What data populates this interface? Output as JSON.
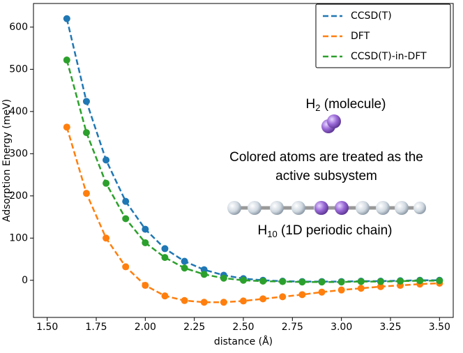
{
  "chart_data": {
    "type": "line",
    "xlabel": "distance (Å)",
    "ylabel": "Adsorption Energy (meV)",
    "x": [
      1.6,
      1.7,
      1.8,
      1.9,
      2.0,
      2.1,
      2.2,
      2.3,
      2.4,
      2.5,
      2.6,
      2.7,
      2.8,
      2.9,
      3.0,
      3.1,
      3.2,
      3.3,
      3.4,
      3.5
    ],
    "series": [
      {
        "name": "CCSD(T)",
        "color": "#1f77b4",
        "values": [
          620,
          424,
          285,
          187,
          121,
          75,
          45,
          25,
          12,
          4,
          0,
          -2,
          -3,
          -3,
          -3,
          -2,
          -2,
          -1,
          0,
          0
        ]
      },
      {
        "name": "DFT",
        "color": "#ff7f0e",
        "values": [
          363,
          206,
          100,
          32,
          -12,
          -37,
          -48,
          -52,
          -52,
          -49,
          -44,
          -39,
          -34,
          -28,
          -23,
          -19,
          -15,
          -12,
          -9,
          -7
        ]
      },
      {
        "name": "CCSD(T)-in-DFT",
        "color": "#2ca02c",
        "values": [
          522,
          350,
          230,
          146,
          89,
          54,
          29,
          14,
          5,
          0,
          -2,
          -3,
          -4,
          -4,
          -4,
          -3,
          -3,
          -2,
          -1,
          -1
        ]
      }
    ],
    "xlim": [
      1.43,
      3.57
    ],
    "ylim": [
      -88,
      656
    ],
    "xticks": [
      {
        "value": 1.5,
        "label": "1.50"
      },
      {
        "value": 1.75,
        "label": "1.75"
      },
      {
        "value": 2.0,
        "label": "2.00"
      },
      {
        "value": 2.25,
        "label": "2.25"
      },
      {
        "value": 2.5,
        "label": "2.50"
      },
      {
        "value": 2.75,
        "label": "2.75"
      },
      {
        "value": 3.0,
        "label": "3.00"
      },
      {
        "value": 3.25,
        "label": "3.25"
      },
      {
        "value": 3.5,
        "label": "3.50"
      }
    ],
    "yticks": [
      0,
      100,
      200,
      300,
      400,
      500,
      600
    ],
    "legend": "upper right",
    "annotations": {
      "molecule": {
        "base": "H",
        "sub": "2",
        "suffix": " (molecule)"
      },
      "note": [
        "Colored atoms are treated as the",
        "active subsystem"
      ],
      "chain": {
        "base": "H",
        "sub": "10",
        "suffix": " (1D periodic chain)"
      }
    }
  }
}
